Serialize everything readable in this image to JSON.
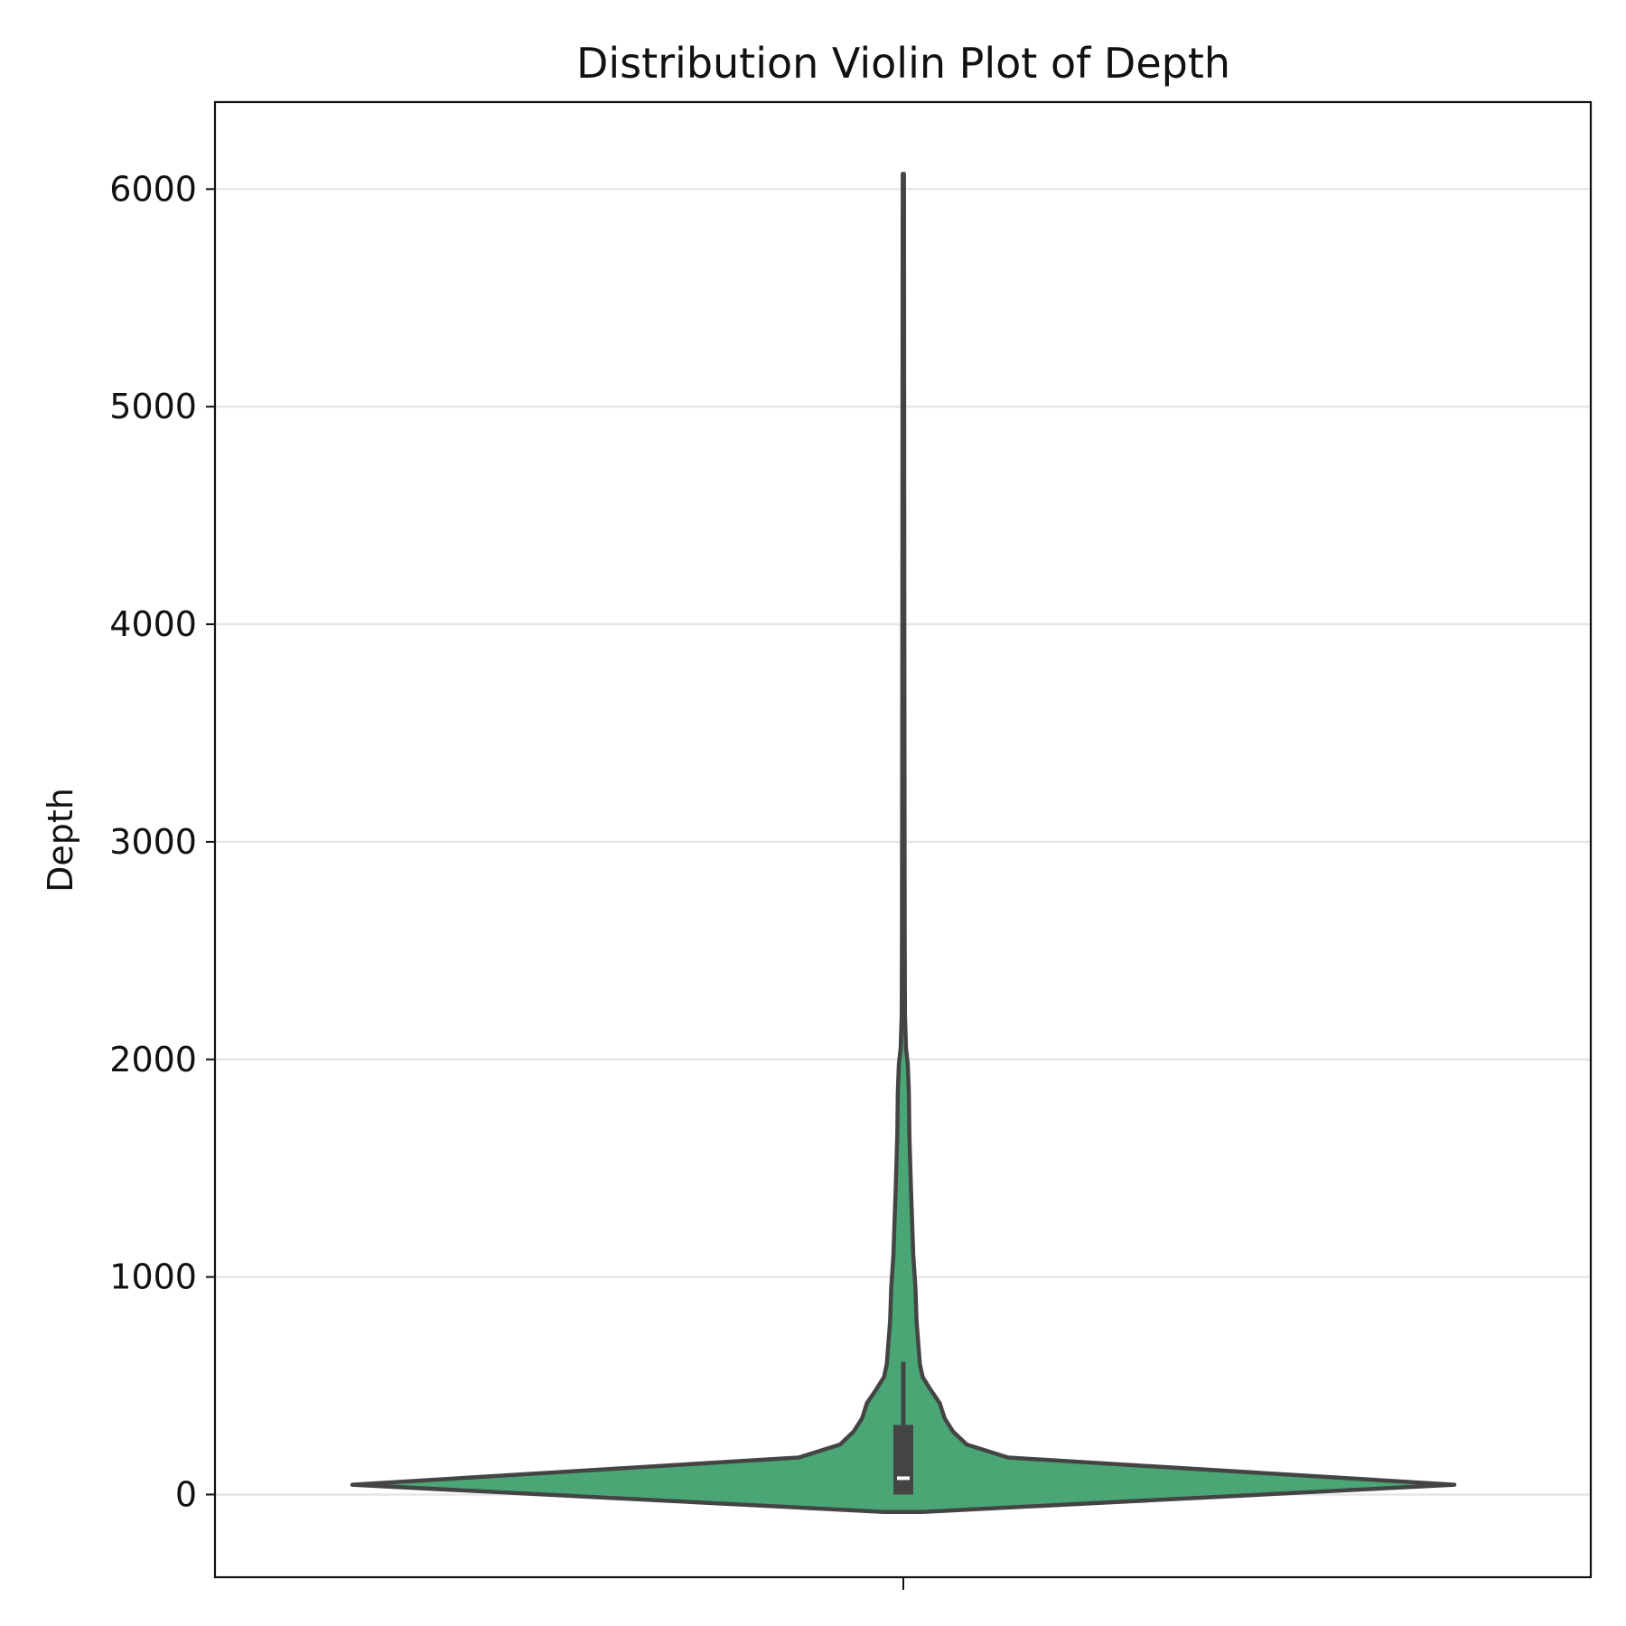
{
  "chart_data": {
    "type": "violin",
    "title": "Distribution Violin Plot of Depth",
    "xlabel": "",
    "ylabel": "Depth",
    "ylim": [
      -380,
      6400
    ],
    "yticks": [
      0,
      1000,
      2000,
      3000,
      4000,
      5000,
      6000
    ],
    "ytick_labels": [
      "0",
      "1000",
      "2000",
      "3000",
      "4000",
      "5000",
      "6000"
    ],
    "grid": "horizontal",
    "categories": [
      ""
    ],
    "colors": {
      "violin_fill": "#4aa674",
      "outline": "#444444",
      "box": "#444444",
      "median": "#ffffff",
      "grid": "#e6e6e6"
    },
    "series": [
      {
        "density_profile": [
          {
            "y": -80,
            "w": 0.035
          },
          {
            "y": 45,
            "w": 1.0
          },
          {
            "y": 170,
            "w": 0.19
          },
          {
            "y": 230,
            "w": 0.115
          },
          {
            "y": 290,
            "w": 0.09
          },
          {
            "y": 350,
            "w": 0.075
          },
          {
            "y": 420,
            "w": 0.066
          },
          {
            "y": 480,
            "w": 0.05
          },
          {
            "y": 540,
            "w": 0.035
          },
          {
            "y": 600,
            "w": 0.03
          },
          {
            "y": 800,
            "w": 0.024
          },
          {
            "y": 950,
            "w": 0.022
          },
          {
            "y": 1100,
            "w": 0.018
          },
          {
            "y": 1400,
            "w": 0.014
          },
          {
            "y": 1650,
            "w": 0.011
          },
          {
            "y": 1850,
            "w": 0.01
          },
          {
            "y": 1980,
            "w": 0.008
          },
          {
            "y": 2050,
            "w": 0.005
          },
          {
            "y": 2200,
            "w": 0.003
          },
          {
            "y": 2600,
            "w": 0.0025
          },
          {
            "y": 4000,
            "w": 0.0018
          },
          {
            "y": 6070,
            "w": 0.0012
          }
        ],
        "whisker_low": 0,
        "q1": 0,
        "median": 75,
        "q3": 320,
        "whisker_high": 610
      }
    ]
  }
}
